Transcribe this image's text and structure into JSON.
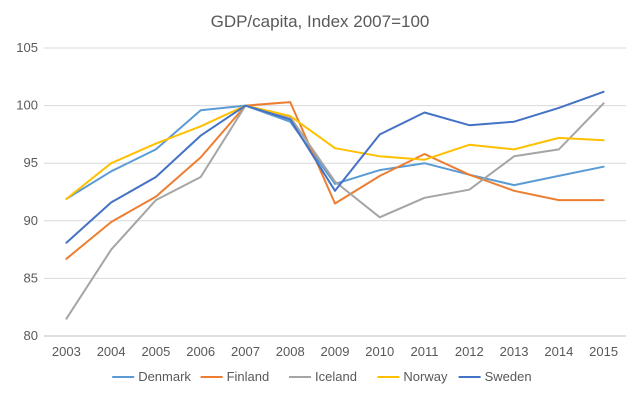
{
  "chart_data": {
    "type": "line",
    "title": "GDP/capita, Index 2007=100",
    "xlabel": "",
    "ylabel": "",
    "categories": [
      "2003",
      "2004",
      "2005",
      "2006",
      "2007",
      "2008",
      "2009",
      "2010",
      "2011",
      "2012",
      "2013",
      "2014",
      "2015"
    ],
    "ylim": [
      80,
      105
    ],
    "yticks": [
      80,
      85,
      90,
      95,
      100,
      105
    ],
    "grid": true,
    "legend": "bottom",
    "series": [
      {
        "name": "Denmark",
        "color": "#5b9bd5",
        "values": [
          91.9,
          94.3,
          96.2,
          99.6,
          100.0,
          98.6,
          93.2,
          94.4,
          95.0,
          94.0,
          93.1,
          93.9,
          94.7
        ]
      },
      {
        "name": "Finland",
        "color": "#ed7d31",
        "values": [
          86.7,
          89.9,
          92.1,
          95.5,
          100.0,
          100.3,
          91.5,
          93.9,
          95.8,
          94.0,
          92.6,
          91.8,
          91.8
        ]
      },
      {
        "name": "Iceland",
        "color": "#a5a5a5",
        "values": [
          81.5,
          87.5,
          91.8,
          93.8,
          100.0,
          99.0,
          93.4,
          90.3,
          92.0,
          92.7,
          95.6,
          96.2,
          100.2
        ]
      },
      {
        "name": "Norway",
        "color": "#ffc000",
        "values": [
          91.9,
          95.0,
          96.7,
          98.2,
          100.0,
          99.1,
          96.3,
          95.6,
          95.3,
          96.6,
          96.2,
          97.2,
          97.0
        ]
      },
      {
        "name": "Sweden",
        "color": "#4472c4",
        "values": [
          88.1,
          91.6,
          93.8,
          97.4,
          100.0,
          98.8,
          92.6,
          97.5,
          99.4,
          98.3,
          98.6,
          99.8,
          101.2
        ]
      }
    ]
  }
}
